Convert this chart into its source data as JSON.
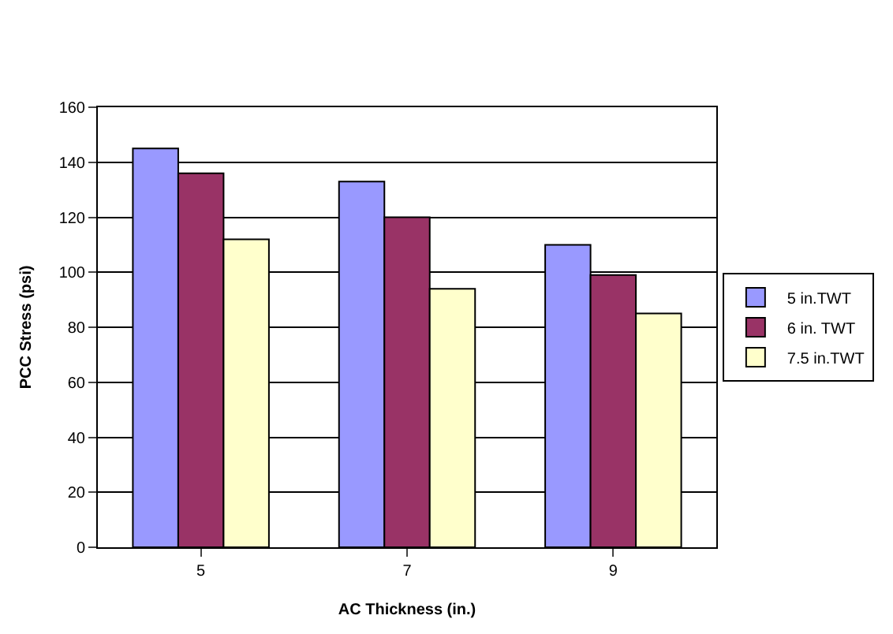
{
  "chart_data": {
    "type": "bar",
    "xlabel": "AC Thickness (in.)",
    "ylabel": "PCC Stress (psi)",
    "categories": [
      "5",
      "7",
      "9"
    ],
    "series": [
      {
        "name": "5 in.TWT",
        "color": "#9999ff",
        "values": [
          145,
          133,
          110
        ]
      },
      {
        "name": "6 in. TWT",
        "color": "#993366",
        "values": [
          136,
          120,
          99
        ]
      },
      {
        "name": "7.5 in.TWT",
        "color": "#ffffcc",
        "values": [
          112,
          94,
          85
        ]
      }
    ],
    "ylim": [
      0,
      160
    ],
    "yticks": [
      0,
      20,
      40,
      60,
      80,
      100,
      120,
      140,
      160
    ],
    "grid": "y",
    "legend": "right"
  }
}
